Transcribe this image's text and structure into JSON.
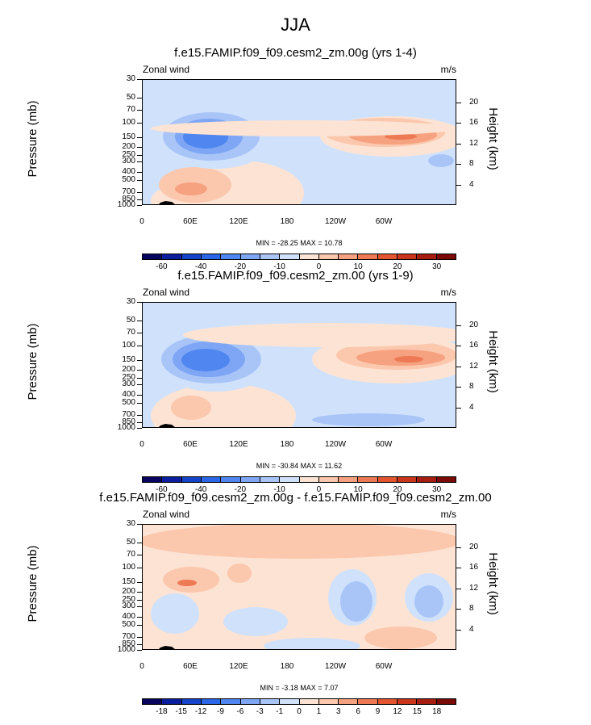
{
  "title": "JJA",
  "panels": [
    {
      "title": "f.e15.FAMIP.f09_f09.cesm2_zm.00g (yrs 1-4)",
      "left_label": "Zonal wind",
      "right_label": "m/s",
      "stats": "MIN = -28.25  MAX = 10.78",
      "colorbar_labels": [
        "-60",
        "-40",
        "-20",
        "-10",
        "0",
        "10",
        "20",
        "30"
      ]
    },
    {
      "title": "f.e15.FAMIP.f09_f09.cesm2_zm.00 (yrs 1-9)",
      "left_label": "Zonal wind",
      "right_label": "m/s",
      "stats": "MIN = -30.84  MAX = 11.62",
      "colorbar_labels": [
        "-60",
        "-40",
        "-20",
        "-10",
        "0",
        "10",
        "20",
        "30"
      ]
    },
    {
      "title": "f.e15.FAMIP.f09_f09.cesm2_zm.00g - f.e15.FAMIP.f09_f09.cesm2_zm.00",
      "left_label": "Zonal wind",
      "right_label": "m/s",
      "stats": "MIN = -3.18  MAX = 7.07",
      "colorbar_labels": [
        "-18",
        "-15",
        "-12",
        "-9",
        "-6",
        "-3",
        "-1",
        "0",
        "1",
        "3",
        "6",
        "9",
        "12",
        "15",
        "18"
      ]
    }
  ],
  "axes": {
    "ylabel": "Pressure (mb)",
    "y2label": "Height (km)",
    "pressure_ticks": [
      "30",
      "50",
      "70",
      "100",
      "150",
      "200",
      "250",
      "300",
      "400",
      "500",
      "700",
      "850",
      "1000"
    ],
    "height_ticks": [
      "20",
      "16",
      "12",
      "8",
      "4"
    ],
    "x_ticks": [
      "0",
      "60E",
      "120E",
      "180",
      "120W",
      "60W"
    ]
  },
  "chart_data": [
    {
      "type": "heatmap",
      "title": "f.e15.FAMIP.f09_f09.cesm2_zm.00g (yrs 1-4)",
      "variable": "Zonal wind",
      "units": "m/s",
      "xlabel": "",
      "ylabel": "Pressure (mb)",
      "y2label": "Height (km)",
      "x_ticks": [
        "0",
        "60E",
        "120E",
        "180",
        "120W",
        "60W"
      ],
      "ylim": [
        1000,
        30
      ],
      "min": -28.25,
      "max": 10.78,
      "contour_levels": [
        -70,
        -60,
        -50,
        -40,
        -30,
        -20,
        -15,
        -10,
        -5,
        0,
        5,
        10,
        15,
        20,
        25,
        30,
        35
      ],
      "colorbar_labels": [
        -60,
        -40,
        -20,
        -10,
        0,
        10,
        20,
        30
      ]
    },
    {
      "type": "heatmap",
      "title": "f.e15.FAMIP.f09_f09.cesm2_zm.00 (yrs 1-9)",
      "variable": "Zonal wind",
      "units": "m/s",
      "xlabel": "",
      "ylabel": "Pressure (mb)",
      "y2label": "Height (km)",
      "x_ticks": [
        "0",
        "60E",
        "120E",
        "180",
        "120W",
        "60W"
      ],
      "ylim": [
        1000,
        30
      ],
      "min": -30.84,
      "max": 11.62,
      "contour_levels": [
        -70,
        -60,
        -50,
        -40,
        -30,
        -20,
        -15,
        -10,
        -5,
        0,
        5,
        10,
        15,
        20,
        25,
        30,
        35
      ],
      "colorbar_labels": [
        -60,
        -40,
        -20,
        -10,
        0,
        10,
        20,
        30
      ]
    },
    {
      "type": "heatmap",
      "title": "f.e15.FAMIP.f09_f09.cesm2_zm.00g - f.e15.FAMIP.f09_f09.cesm2_zm.00",
      "variable": "Zonal wind",
      "units": "m/s",
      "xlabel": "",
      "ylabel": "Pressure (mb)",
      "y2label": "Height (km)",
      "x_ticks": [
        "0",
        "60E",
        "120E",
        "180",
        "120W",
        "60W"
      ],
      "ylim": [
        1000,
        30
      ],
      "min": -3.18,
      "max": 7.07,
      "contour_levels": [
        -21,
        -18,
        -15,
        -12,
        -9,
        -6,
        -3,
        -1,
        0,
        1,
        3,
        6,
        9,
        12,
        15,
        18,
        21
      ],
      "colorbar_labels": [
        -18,
        -15,
        -12,
        -9,
        -6,
        -3,
        -1,
        0,
        1,
        3,
        6,
        9,
        12,
        15,
        18
      ]
    }
  ],
  "colors": {
    "colormap": [
      "#08055e",
      "#0b1e9e",
      "#1544c9",
      "#2a66e5",
      "#4f86f0",
      "#7ea6f4",
      "#a9c5f8",
      "#d0e2fb",
      "#fde3d3",
      "#fbc7ad",
      "#f6a17f",
      "#ee7a55",
      "#e2552f",
      "#c9361c",
      "#a51e10",
      "#7a0a05"
    ]
  }
}
